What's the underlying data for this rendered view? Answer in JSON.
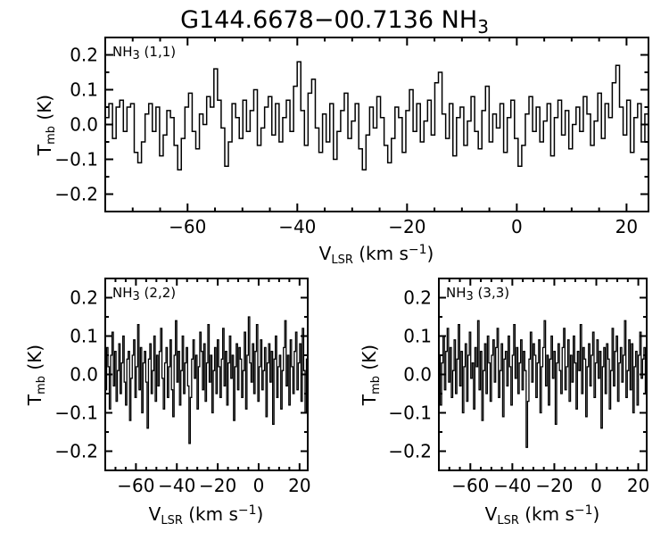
{
  "title": {
    "main": "G144.6678−00.7136 NH",
    "sub": "3"
  },
  "xlabel": {
    "main": "V",
    "sub": "LSR",
    "mid": " (km s",
    "sup": "−1",
    "end": ")"
  },
  "ylabel": {
    "main": "T",
    "sub": "mb",
    "rest": " (K)"
  },
  "chart_data": [
    {
      "type": "line",
      "style": "histogram-step",
      "title": "NH3 (1,1)",
      "label": {
        "main": "NH",
        "sub": "3",
        "rest": " (1,1)"
      },
      "xlabel": "V_LSR (km s^-1)",
      "ylabel": "T_mb (K)",
      "xlim": [
        -75,
        24
      ],
      "ylim": [
        -0.25,
        0.25
      ],
      "x_ticks": [
        -60,
        -40,
        -20,
        0,
        20
      ],
      "y_ticks": [
        0.2,
        0.1,
        0.0,
        -0.1,
        -0.2
      ],
      "x_minor_step": 5,
      "y_minor_step": 0.05,
      "grid": false,
      "line_color": "#000000",
      "values": [
        0.02,
        0.06,
        -0.04,
        0.05,
        0.07,
        -0.02,
        0.05,
        0.06,
        -0.08,
        -0.11,
        -0.05,
        0.03,
        0.06,
        -0.02,
        0.05,
        -0.09,
        -0.03,
        0.04,
        0.02,
        -0.06,
        -0.13,
        -0.04,
        0.05,
        0.09,
        -0.02,
        -0.07,
        0.03,
        0.0,
        0.08,
        0.05,
        0.16,
        0.07,
        -0.01,
        -0.12,
        -0.05,
        0.06,
        0.02,
        -0.04,
        0.07,
        -0.02,
        0.04,
        0.1,
        -0.06,
        -0.01,
        0.05,
        0.08,
        -0.03,
        0.06,
        -0.05,
        0.02,
        0.07,
        -0.02,
        0.11,
        0.18,
        0.04,
        -0.06,
        0.09,
        0.13,
        -0.01,
        -0.08,
        0.03,
        -0.05,
        0.06,
        -0.1,
        -0.02,
        0.04,
        0.09,
        -0.04,
        0.01,
        0.06,
        -0.07,
        -0.13,
        -0.03,
        0.05,
        -0.01,
        0.08,
        0.02,
        -0.06,
        -0.11,
        -0.04,
        0.05,
        0.02,
        -0.08,
        0.04,
        0.1,
        -0.02,
        0.06,
        -0.05,
        0.01,
        0.07,
        -0.03,
        0.12,
        0.15,
        0.03,
        -0.04,
        0.06,
        -0.09,
        0.02,
        0.05,
        -0.06,
        0.01,
        0.08,
        -0.02,
        -0.07,
        0.04,
        0.11,
        -0.05,
        0.03,
        -0.01,
        0.06,
        -0.08,
        0.02,
        0.07,
        -0.04,
        -0.12,
        -0.06,
        0.03,
        0.08,
        -0.02,
        0.05,
        -0.05,
        0.01,
        0.06,
        -0.09,
        0.02,
        0.07,
        -0.03,
        0.04,
        -0.07,
        0.0,
        0.05,
        -0.02,
        0.08,
        0.03,
        -0.06,
        0.01,
        0.09,
        -0.04,
        0.06,
        0.02,
        0.12,
        0.17,
        0.05,
        -0.03,
        0.07,
        -0.08,
        0.02,
        0.06,
        -0.05,
        0.03
      ]
    },
    {
      "type": "line",
      "style": "histogram-step",
      "title": "NH3 (2,2)",
      "label": {
        "main": "NH",
        "sub": "3",
        "rest": " (2,2)"
      },
      "xlabel": "V_LSR (km s^-1)",
      "ylabel": "T_mb (K)",
      "xlim": [
        -75,
        24
      ],
      "ylim": [
        -0.25,
        0.25
      ],
      "x_ticks": [
        -60,
        -40,
        -20,
        0,
        20
      ],
      "y_ticks": [
        0.2,
        0.1,
        0.0,
        -0.1,
        -0.2
      ],
      "x_minor_step": 5,
      "y_minor_step": 0.05,
      "grid": false,
      "line_color": "#000000",
      "values": [
        -0.04,
        0.07,
        0.02,
        -0.09,
        0.05,
        0.11,
        -0.03,
        0.06,
        -0.07,
        0.01,
        0.08,
        -0.05,
        0.03,
        0.1,
        -0.02,
        -0.08,
        0.04,
        0.06,
        -0.12,
        -0.01,
        0.05,
        0.09,
        -0.06,
        0.02,
        0.13,
        -0.04,
        0.07,
        -0.1,
        0.03,
        0.06,
        -0.02,
        -0.14,
        0.04,
        0.08,
        -0.05,
        0.01,
        0.1,
        -0.07,
        0.05,
        -0.03,
        0.06,
        0.12,
        -0.01,
        -0.09,
        0.03,
        0.07,
        -0.06,
        0.02,
        0.09,
        -0.04,
        -0.11,
        0.05,
        0.14,
        -0.02,
        0.06,
        -0.08,
        0.01,
        0.1,
        -0.05,
        0.03,
        0.07,
        -0.03,
        -0.18,
        -0.06,
        0.04,
        0.09,
        -0.01,
        0.05,
        -0.09,
        0.02,
        0.11,
        0.06,
        -0.04,
        0.08,
        -0.07,
        0.03,
        0.13,
        -0.02,
        0.05,
        -0.1,
        0.01,
        0.07,
        -0.05,
        0.09,
        0.02,
        -0.06,
        0.04,
        0.12,
        -0.03,
        0.06,
        -0.08,
        0.03,
        0.1,
        -0.01,
        0.05,
        -0.12,
        0.02,
        0.08,
        -0.04,
        0.07,
        0.04,
        -0.06,
        0.01,
        0.11,
        -0.09,
        0.05,
        0.15,
        0.03,
        -0.02,
        0.08,
        -0.05,
        0.06,
        0.13,
        -0.07,
        0.02,
        0.09,
        -0.04,
        0.01,
        0.07,
        -0.11,
        0.03,
        0.08,
        -0.02,
        0.06,
        -0.13,
        0.04,
        0.1,
        -0.06,
        0.02,
        0.05,
        -0.09,
        0.01,
        0.07,
        0.14,
        -0.03,
        0.05,
        -0.08,
        0.09,
        0.02,
        -0.05,
        0.06,
        0.11,
        -0.04,
        0.03,
        0.08,
        -0.07,
        0.12,
        0.01,
        -0.1,
        0.04
      ]
    },
    {
      "type": "line",
      "style": "histogram-step",
      "title": "NH3 (3,3)",
      "label": {
        "main": "NH",
        "sub": "3",
        "rest": " (3,3)"
      },
      "xlabel": "V_LSR (km s^-1)",
      "ylabel": "T_mb (K)",
      "xlim": [
        -75,
        24
      ],
      "ylim": [
        -0.25,
        0.25
      ],
      "x_ticks": [
        -60,
        -40,
        -20,
        0,
        20
      ],
      "y_ticks": [
        0.2,
        0.1,
        0.0,
        -0.1,
        -0.2
      ],
      "x_minor_step": 5,
      "y_minor_step": 0.05,
      "grid": false,
      "line_color": "#000000",
      "values": [
        0.05,
        -0.08,
        0.03,
        0.1,
        -0.04,
        0.06,
        0.12,
        -0.02,
        0.07,
        -0.06,
        0.01,
        0.09,
        -0.05,
        0.04,
        0.13,
        -0.03,
        0.06,
        -0.1,
        0.02,
        0.08,
        -0.07,
        0.05,
        0.11,
        -0.01,
        0.03,
        -0.09,
        0.07,
        0.02,
        0.14,
        -0.04,
        0.06,
        -0.12,
        0.01,
        0.08,
        -0.05,
        0.1,
        0.03,
        -0.07,
        0.05,
        0.09,
        -0.02,
        0.07,
        0.12,
        -0.06,
        0.01,
        0.08,
        -0.11,
        0.04,
        0.06,
        -0.03,
        0.1,
        0.02,
        -0.08,
        0.05,
        0.13,
        -0.01,
        0.07,
        -0.05,
        0.03,
        0.09,
        -0.04,
        0.06,
        0.01,
        -0.19,
        -0.07,
        0.04,
        0.11,
        -0.02,
        0.08,
        0.05,
        -0.06,
        0.03,
        0.09,
        -0.1,
        0.02,
        0.07,
        0.14,
        -0.03,
        0.05,
        -0.08,
        0.04,
        0.1,
        -0.01,
        0.06,
        -0.13,
        0.03,
        0.08,
        0.01,
        -0.05,
        0.07,
        0.12,
        -0.04,
        0.02,
        0.09,
        -0.07,
        0.05,
        -0.02,
        0.1,
        0.03,
        -0.09,
        0.06,
        0.01,
        0.13,
        -0.05,
        0.07,
        0.04,
        -0.11,
        0.02,
        0.08,
        -0.03,
        0.05,
        0.11,
        -0.06,
        0.03,
        0.09,
        -0.01,
        0.06,
        -0.14,
        0.02,
        0.07,
        -0.05,
        0.08,
        0.04,
        -0.09,
        0.01,
        0.12,
        -0.03,
        0.06,
        0.1,
        -0.07,
        0.03,
        0.07,
        -0.02,
        0.05,
        0.14,
        -0.06,
        0.01,
        0.09,
        -0.04,
        0.08,
        -0.1,
        0.02,
        0.06,
        -0.08,
        0.05,
        0.11,
        -0.01,
        0.04,
        0.07,
        -0.05
      ]
    }
  ]
}
